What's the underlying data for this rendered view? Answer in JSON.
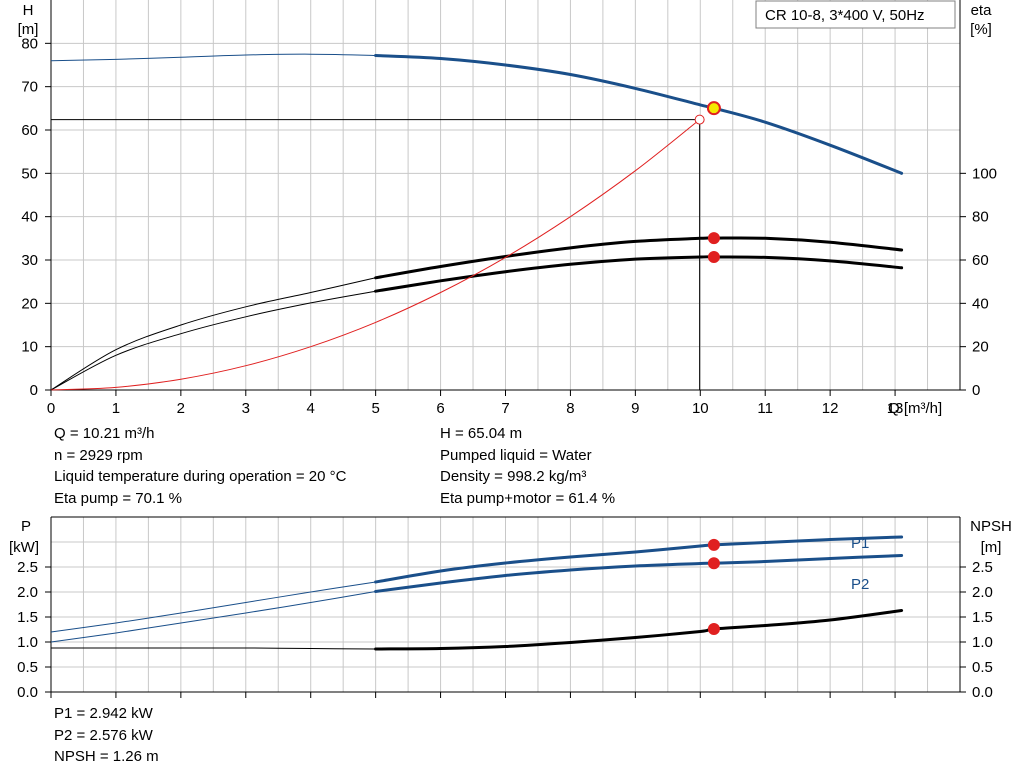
{
  "chart_data": [
    {
      "type": "line",
      "title": "",
      "legend_box": "CR 10-8, 3*400 V, 50Hz",
      "xlabel": "Q [m³/h]",
      "ylabel_left": [
        "H",
        "[m]"
      ],
      "ylabel_right": [
        "eta",
        "[%]"
      ],
      "xlim": [
        0,
        14
      ],
      "ylim_left": [
        0,
        90
      ],
      "ylim_right": [
        0,
        180
      ],
      "x_ticks": [
        0,
        1,
        2,
        3,
        4,
        5,
        6,
        7,
        8,
        9,
        10,
        11,
        12,
        13
      ],
      "y_ticks_left": [
        0,
        10,
        20,
        30,
        40,
        50,
        60,
        70,
        80
      ],
      "y_ticks_right": [
        0,
        20,
        40,
        60,
        80,
        100
      ],
      "grid": true,
      "series": [
        {
          "name": "",
          "axis": "left",
          "color": "#1a4f8a",
          "x": [
            0,
            1,
            2,
            3,
            4,
            5,
            6,
            7,
            8,
            9,
            10,
            10.21,
            11,
            12,
            13.1
          ],
          "y": [
            76.0,
            76.3,
            76.8,
            77.3,
            77.5,
            77.2,
            76.5,
            75.0,
            72.8,
            69.6,
            65.8,
            65.04,
            61.8,
            56.5,
            50.0
          ],
          "bold_from_x": 5
        },
        {
          "name": "",
          "axis": "right",
          "color": "#000000",
          "x": [
            0,
            1,
            2,
            3,
            4,
            5,
            6,
            7,
            8,
            9,
            10,
            10.21,
            11,
            12,
            13.1
          ],
          "y": [
            0,
            18.6,
            30.0,
            38.4,
            45.0,
            51.8,
            57.0,
            61.6,
            65.6,
            68.6,
            70.0,
            70.1,
            70.0,
            68.2,
            64.6
          ],
          "bold_from_x": 5
        },
        {
          "name": "",
          "axis": "right",
          "color": "#000000",
          "x": [
            0,
            1,
            2,
            3,
            4,
            5,
            6,
            7,
            8,
            9,
            10,
            10.21,
            11,
            12,
            13.1
          ],
          "y": [
            0,
            16.0,
            26.0,
            33.8,
            40.2,
            45.6,
            50.4,
            54.6,
            58.0,
            60.4,
            61.4,
            61.4,
            61.2,
            59.6,
            56.4
          ],
          "bold_from_x": 5
        },
        {
          "name": "",
          "axis": "left",
          "color": "#e02020",
          "style": "thin",
          "x": [
            0,
            1,
            2,
            3,
            4,
            5,
            6,
            7,
            8,
            9,
            9.99
          ],
          "y": [
            0,
            0.6,
            2.5,
            5.6,
            10.0,
            15.6,
            22.5,
            30.6,
            40.0,
            50.6,
            62.4
          ]
        }
      ],
      "system_curve_endpoint": {
        "x": 9.99,
        "y": 62.4
      },
      "duty_point": {
        "x": 10.21,
        "y": 65.04
      },
      "red_markers": [
        {
          "x": 10.21,
          "y_right": 70.1
        },
        {
          "x": 10.21,
          "y_right": 61.4
        }
      ]
    },
    {
      "type": "line",
      "title": "",
      "xlabel": "",
      "ylabel_left": [
        "P",
        "[kW]"
      ],
      "ylabel_right": [
        "NPSH",
        "[m]"
      ],
      "xlim": [
        0,
        14
      ],
      "ylim": [
        0,
        3.5
      ],
      "y_ticks": [
        "0.0",
        "0.5",
        "1.0",
        "1.5",
        "2.0",
        "2.5"
      ],
      "y_tick_values": [
        0,
        0.5,
        1.0,
        1.5,
        2.0,
        2.5
      ],
      "grid": true,
      "series": [
        {
          "name": "P1",
          "color": "#1a4f8a",
          "x": [
            0,
            1,
            2,
            3,
            4,
            5,
            6,
            7,
            8,
            9,
            10,
            10.21,
            11,
            12,
            13.1
          ],
          "y": [
            1.2,
            1.38,
            1.58,
            1.79,
            2.0,
            2.2,
            2.42,
            2.58,
            2.7,
            2.8,
            2.92,
            2.942,
            2.99,
            3.05,
            3.1
          ],
          "bold_from_x": 5
        },
        {
          "name": "P2",
          "color": "#1a4f8a",
          "x": [
            0,
            1,
            2,
            3,
            4,
            5,
            6,
            7,
            8,
            9,
            10,
            10.21,
            11,
            12,
            13.1
          ],
          "y": [
            1.0,
            1.18,
            1.38,
            1.58,
            1.79,
            2.01,
            2.18,
            2.33,
            2.44,
            2.52,
            2.57,
            2.576,
            2.61,
            2.67,
            2.73
          ],
          "bold_from_x": 5
        },
        {
          "name": "",
          "color": "#000000",
          "x": [
            0,
            1,
            2,
            3,
            4,
            5,
            6,
            7,
            8,
            9,
            10,
            10.21,
            11,
            12,
            13.1
          ],
          "y": [
            0.88,
            0.88,
            0.88,
            0.88,
            0.87,
            0.86,
            0.87,
            0.91,
            0.99,
            1.09,
            1.21,
            1.26,
            1.33,
            1.44,
            1.63
          ],
          "bold_from_x": 5
        }
      ],
      "red_markers": [
        {
          "x": 10.21,
          "y": 2.942
        },
        {
          "x": 10.21,
          "y": 2.576
        },
        {
          "x": 10.21,
          "y": 1.26
        }
      ]
    }
  ],
  "info_left": [
    "Q = 10.21 m³/h",
    "n = 2929 rpm",
    "Liquid temperature during operation = 20 °C",
    "Eta pump = 70.1 %"
  ],
  "info_right": [
    "H = 65.04 m",
    "Pumped liquid = Water",
    "Density = 998.2 kg/m³",
    "Eta pump+motor = 61.4 %"
  ],
  "info_bottom": [
    "P1 = 2.942 kW",
    "P2 = 2.576 kW",
    "NPSH = 1.26 m"
  ],
  "colors": {
    "blue": "#1a4f8a",
    "black": "#000000",
    "red": "#e02020",
    "duty": "#f4e800",
    "grid": "#c8c8c8"
  }
}
